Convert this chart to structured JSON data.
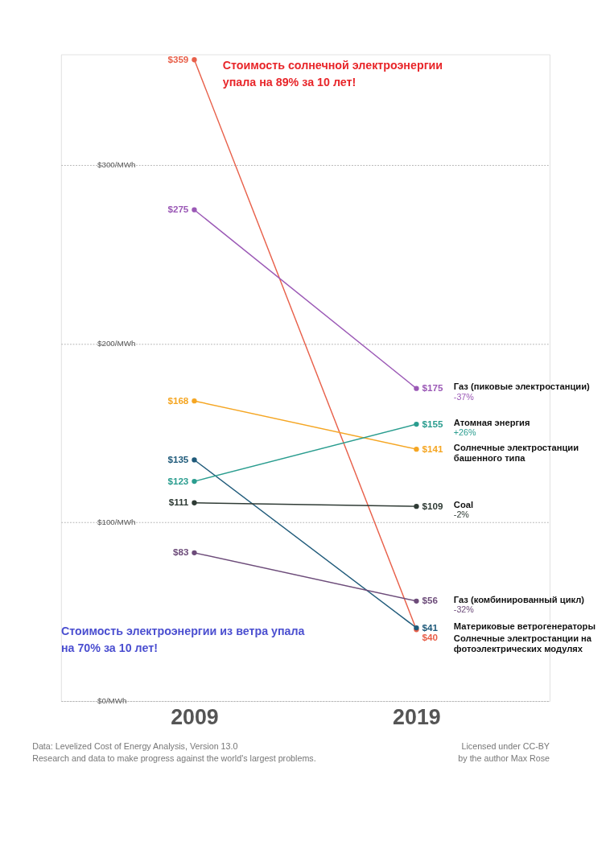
{
  "chart_data": {
    "type": "line",
    "categories": [
      "2009",
      "2019"
    ],
    "ylim": [
      0,
      362
    ],
    "yticks": [
      {
        "value": 0,
        "label": "$0/MWh"
      },
      {
        "value": 100,
        "label": "$100/MWh"
      },
      {
        "value": 200,
        "label": "$200/MWh"
      },
      {
        "value": 300,
        "label": "$300/MWh"
      }
    ],
    "grid": "y",
    "legend": false,
    "marker": "circle",
    "line_style": "solid",
    "series": [
      {
        "name": "Солнечные электростанции на фотоэлектрических модулях",
        "color": "#e8604a",
        "values": [
          359,
          40
        ],
        "value_labels": [
          "$359",
          "$40"
        ]
      },
      {
        "name": "Газ (пиковые электростанции)",
        "color": "#9b59b6",
        "values": [
          275,
          175
        ],
        "value_labels": [
          "$275",
          "$175"
        ]
      },
      {
        "name": "Солнечные электростанции башенного типа",
        "color": "#f5a623",
        "values": [
          168,
          141
        ],
        "value_labels": [
          "$168",
          "$141"
        ]
      },
      {
        "name": "Материковые ветрогенераторы",
        "color": "#1f5a7a",
        "values": [
          135,
          41
        ],
        "value_labels": [
          "$135",
          "$41"
        ]
      },
      {
        "name": "Атомная энергия",
        "color": "#2a9d8f",
        "values": [
          123,
          155
        ],
        "value_labels": [
          "$123",
          "$155"
        ]
      },
      {
        "name": "Coal",
        "color": "#2f3b35",
        "values": [
          111,
          109
        ],
        "value_labels": [
          "$111",
          "$109"
        ]
      },
      {
        "name": "Газ (комбинированный цикл)",
        "color": "#6d4c7a",
        "values": [
          83,
          56
        ],
        "value_labels": [
          "$83",
          "$56"
        ]
      }
    ],
    "annotations": [
      "Стоимость солнечной электроэнергии упала на 89% за 10 лет!",
      "Стоимость электроэнергии из ветра упала на 70% за 10 лет!",
      "-37%",
      "+26%",
      "-2%",
      "-32%",
      "Data: Levelized Cost of Energy Analysis, Version 13.0",
      "Research and data to make progress against the world's largest problems.",
      "Licensed under CC-BY",
      "by the author Max Rose"
    ]
  }
}
